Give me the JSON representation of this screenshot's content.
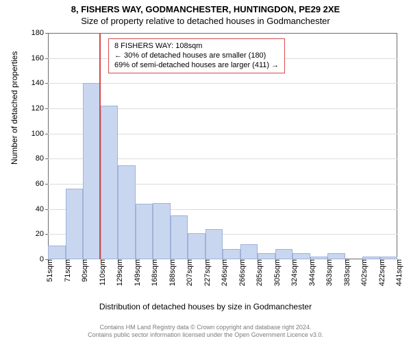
{
  "title_line1": "8, FISHERS WAY, GODMANCHESTER, HUNTINGDON, PE29 2XE",
  "title_line2": "Size of property relative to detached houses in Godmanchester",
  "y_axis_label": "Number of detached properties",
  "x_axis_label": "Distribution of detached houses by size in Godmanchester",
  "footer_line1": "Contains HM Land Registry data © Crown copyright and database right 2024.",
  "footer_line2": "Contains public sector information licensed under the Open Government Licence v3.0.",
  "y": {
    "min": 0,
    "max": 180,
    "ticks": [
      0,
      20,
      40,
      60,
      80,
      100,
      120,
      140,
      160,
      180
    ]
  },
  "x": {
    "ticks": [
      51,
      71,
      90,
      110,
      129,
      149,
      168,
      188,
      207,
      227,
      246,
      266,
      285,
      305,
      324,
      344,
      363,
      383,
      402,
      422,
      441
    ],
    "unit": "sqm"
  },
  "bars": {
    "fill": "#c9d6ef",
    "border": "#9fb2d9",
    "values": [
      11,
      56,
      140,
      122,
      75,
      44,
      45,
      35,
      21,
      24,
      8,
      12,
      5,
      8,
      5,
      2,
      5,
      0,
      2,
      2
    ]
  },
  "reference": {
    "x_value": 108,
    "color": "#d34a4a"
  },
  "annotation": {
    "border_color": "#d34a4a",
    "lines": [
      "8 FISHERS WAY: 108sqm",
      "← 30% of detached houses are smaller (180)",
      "69% of semi-detached houses are larger (411) →"
    ]
  }
}
